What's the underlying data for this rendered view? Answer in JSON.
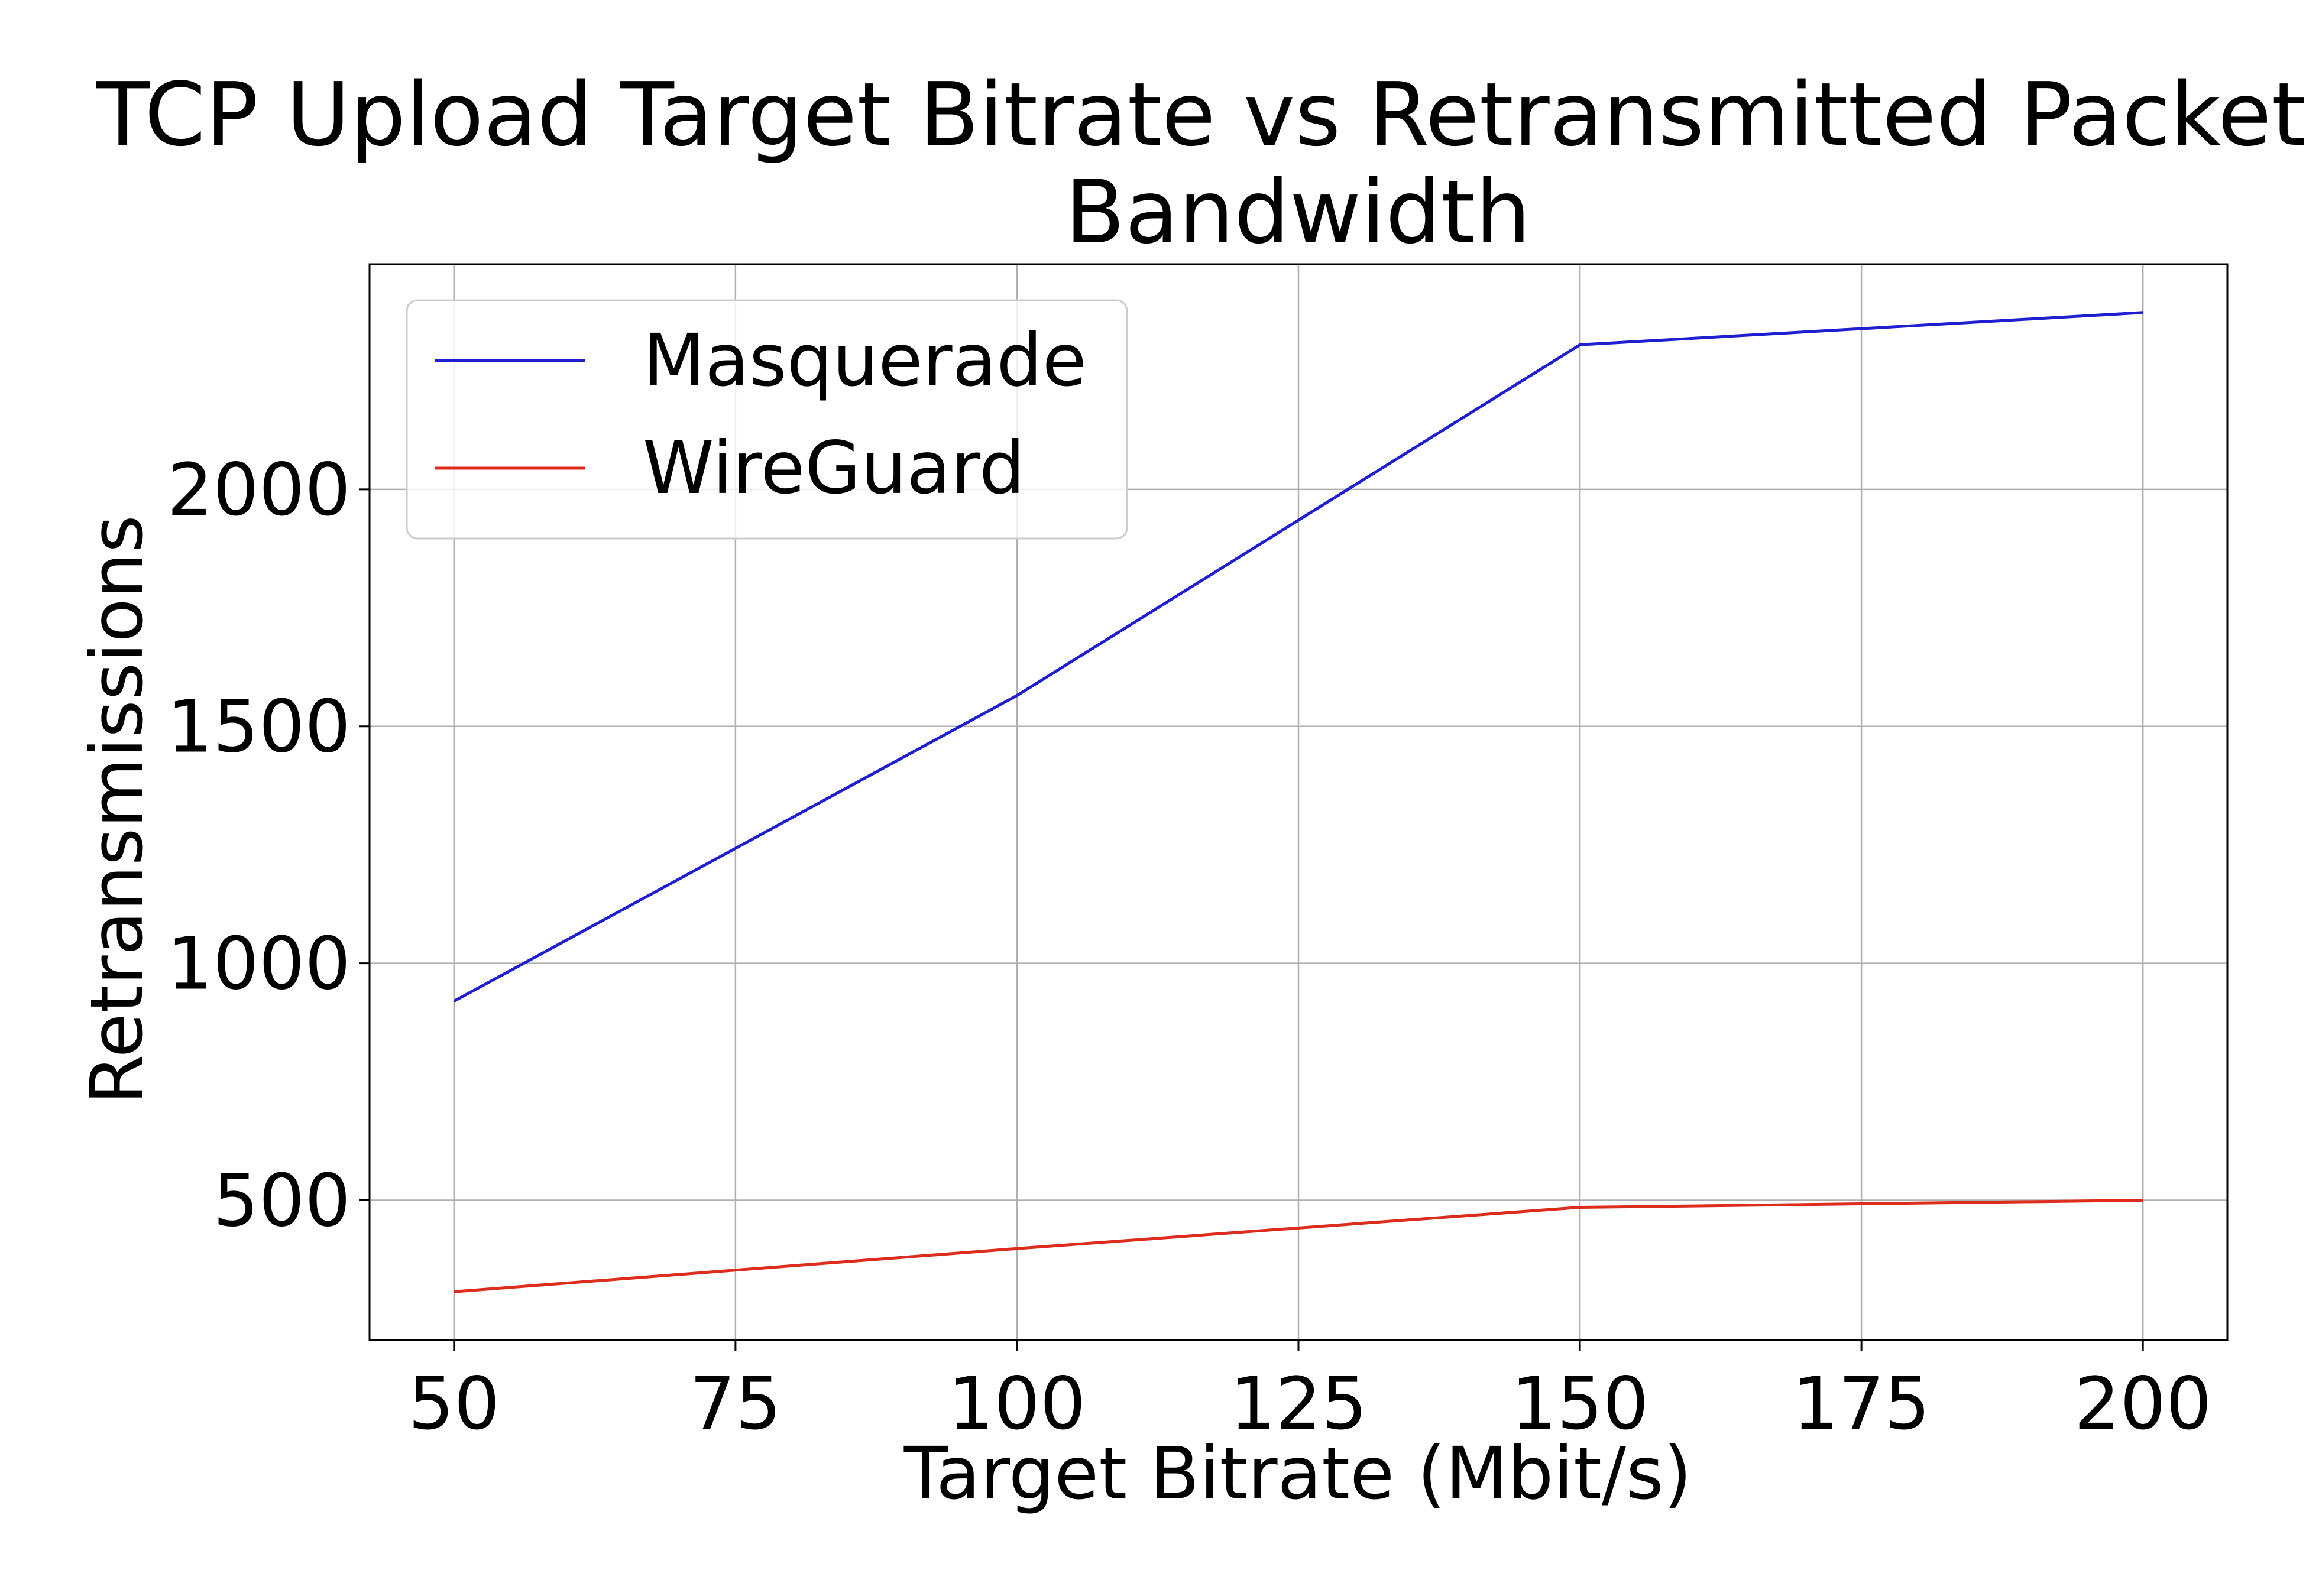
{
  "chart_data": {
    "type": "line",
    "title_line1": "TCP Upload Target Bitrate vs Retransmitted Packets for",
    "title_line2": "Bandwidth",
    "xlabel": "Target Bitrate (Mbit/s)",
    "ylabel": "Retransmissions",
    "x": [
      50,
      100,
      150,
      200
    ],
    "xlim": [
      42.5,
      207.5
    ],
    "ylim": [
      205,
      2475
    ],
    "xticks": [
      50,
      75,
      100,
      125,
      150,
      175,
      200
    ],
    "xtick_labels": [
      "50",
      "75",
      "100",
      "125",
      "150",
      "175",
      "200"
    ],
    "yticks": [
      500,
      1000,
      1500,
      2000
    ],
    "ytick_labels": [
      "500",
      "1000",
      "1500",
      "2000"
    ],
    "grid": true,
    "legend_position": "top-left",
    "series": [
      {
        "name": "Masquerade",
        "color": "#1f1fd1",
        "values": [
          920,
          1565,
          2305,
          2373
        ]
      },
      {
        "name": "WireGuard",
        "color": "#dd2c1c",
        "values": [
          307,
          398,
          485,
          500
        ]
      }
    ]
  }
}
